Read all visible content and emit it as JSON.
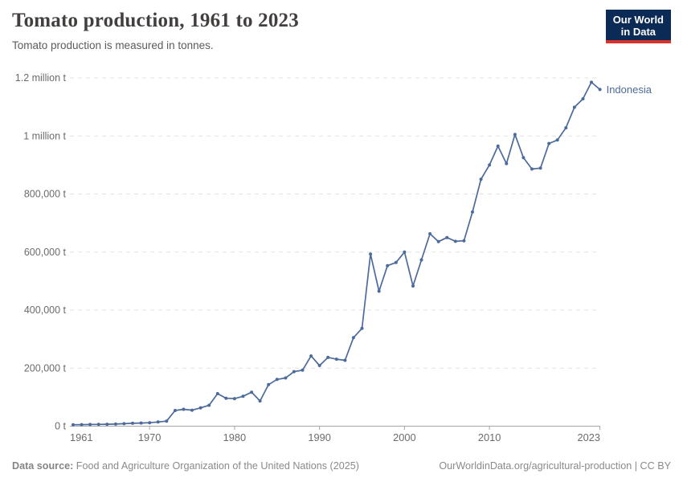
{
  "header": {
    "title": "Tomato production, 1961 to 2023",
    "subtitle": "Tomato production is measured in tonnes."
  },
  "logo": {
    "line1": "Our World",
    "line2": "in Data"
  },
  "footer": {
    "source_label": "Data source:",
    "source_text": "Food and Agriculture Organization of the United Nations (2025)",
    "link_text": "OurWorldinData.org/agricultural-production | CC BY"
  },
  "colors": {
    "line": "#4C6A9C",
    "grid": "#e2e2e2",
    "axis": "#a6a6a6",
    "tick_label": "#6b6b6b",
    "logo_bg": "#0b2a55",
    "logo_accent": "#d7352b"
  },
  "chart_data": {
    "type": "line",
    "title": "Tomato production, 1961 to 2023",
    "ylabel": "tonnes",
    "xlabel": "",
    "xlim": [
      1961,
      2023
    ],
    "ylim": [
      0,
      1200000
    ],
    "grid": "horizontal-dashed",
    "legend": "end-of-line-label",
    "x_ticks": [
      1961,
      1970,
      1980,
      1990,
      2000,
      2010,
      2023
    ],
    "y_ticks": [
      0,
      200000,
      400000,
      600000,
      800000,
      1000000,
      1200000
    ],
    "y_tick_labels": [
      "0 t",
      "200,000 t",
      "400,000 t",
      "600,000 t",
      "800,000 t",
      "1 million t",
      "1.2 million t"
    ],
    "series": [
      {
        "name": "Indonesia",
        "color": "#4C6A9C",
        "x": [
          1961,
          1962,
          1963,
          1964,
          1965,
          1966,
          1967,
          1968,
          1969,
          1970,
          1971,
          1972,
          1973,
          1974,
          1975,
          1976,
          1977,
          1978,
          1979,
          1980,
          1981,
          1982,
          1983,
          1984,
          1985,
          1986,
          1987,
          1988,
          1989,
          1990,
          1991,
          1992,
          1993,
          1994,
          1995,
          1996,
          1997,
          1998,
          1999,
          2000,
          2001,
          2002,
          2003,
          2004,
          2005,
          2006,
          2007,
          2008,
          2009,
          2010,
          2011,
          2012,
          2013,
          2014,
          2015,
          2016,
          2017,
          2018,
          2019,
          2020,
          2021,
          2022,
          2023
        ],
        "values": [
          5000,
          5300,
          5700,
          6100,
          6600,
          7300,
          8500,
          10000,
          10800,
          12000,
          14500,
          17500,
          54000,
          58000,
          55000,
          63000,
          72000,
          112000,
          96000,
          95000,
          103000,
          117000,
          87000,
          143000,
          161000,
          166000,
          188000,
          193000,
          242000,
          209000,
          237000,
          231000,
          227000,
          305000,
          337000,
          593000,
          465000,
          553000,
          564000,
          600000,
          483000,
          573000,
          663000,
          636000,
          650000,
          637000,
          639000,
          738000,
          851000,
          900000,
          965000,
          905000,
          1005000,
          925000,
          886000,
          889000,
          974000,
          986000,
          1028000,
          1099000,
          1128000,
          1185000,
          1160000
        ]
      }
    ]
  }
}
